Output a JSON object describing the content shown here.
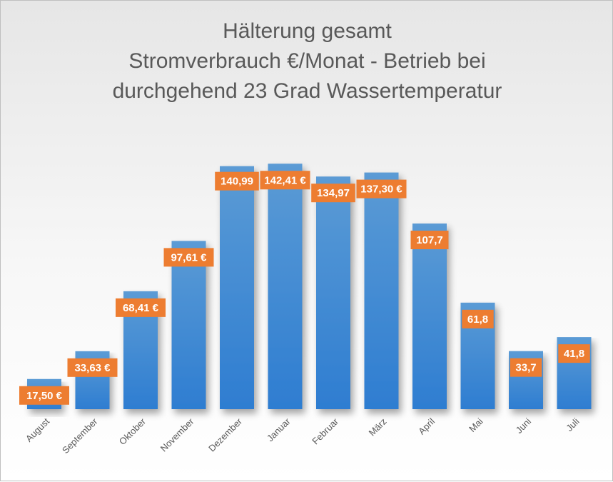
{
  "chart_data": {
    "type": "bar",
    "title_lines": [
      "Hälterung gesamt",
      "Stromverbrauch €/Monat - Betrieb bei",
      "durchgehend 23 Grad Wassertemperatur"
    ],
    "categories": [
      "August",
      "September",
      "Oktober",
      "November",
      "Dezember",
      "Januar",
      "Februar",
      "März",
      "April",
      "Mai",
      "Juni",
      "Juli"
    ],
    "values": [
      17.5,
      33.63,
      68.41,
      97.61,
      140.99,
      142.41,
      134.97,
      137.3,
      107.7,
      61.8,
      33.7,
      41.8
    ],
    "labels": [
      "17,50 €",
      "33,63 €",
      "68,41 €",
      "97,61 €",
      "140,99",
      "142,41 €",
      "134,97",
      "137,30 €",
      "107,7",
      "61,8",
      "33,7",
      "41,8"
    ],
    "xlabel": "",
    "ylabel": "",
    "ylim": [
      0,
      145
    ],
    "grid": false,
    "legend": "none",
    "colors": {
      "bar_top": "#5b9bd5",
      "bar_bottom": "#2e7dd1",
      "label_bg": "#ed7d31",
      "label_text": "#ffffff",
      "tick_text": "#595959"
    }
  }
}
